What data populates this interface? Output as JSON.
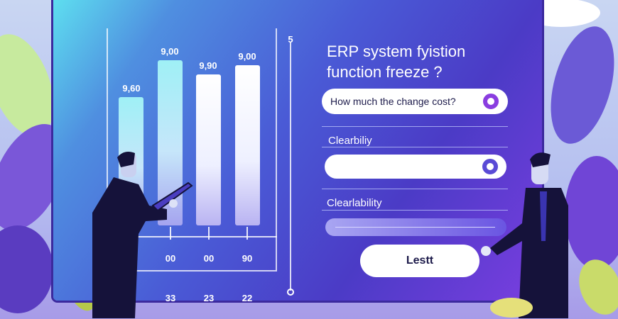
{
  "chart": {
    "bar_labels": [
      "9,60",
      "9,00",
      "9,90",
      "9,00"
    ],
    "axis_labels": [
      "00",
      "00",
      "90"
    ],
    "bottom_labels": [
      "33",
      "23",
      "22"
    ],
    "scale_top": "5"
  },
  "form": {
    "title_line1": "ERP system fyistion",
    "title_line2": "function freeze  ?",
    "question": "How much the change cost?",
    "label1": "Clearbiliy",
    "label2": "Clearlability",
    "button": "Lestt"
  },
  "colors": {
    "accent": "#8a3de0",
    "screen": "#4b3bc6"
  }
}
